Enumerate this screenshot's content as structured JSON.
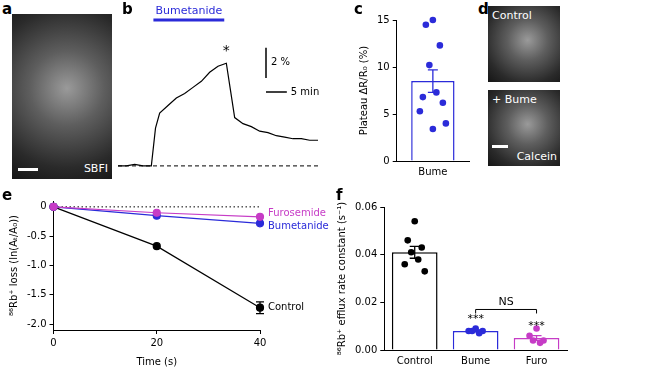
{
  "chart_data": [
    {
      "panel": "b",
      "type": "line",
      "x": [
        0,
        2,
        4,
        6,
        8,
        9,
        10,
        12,
        14,
        16,
        18,
        20,
        22,
        24,
        26,
        27,
        28,
        30,
        32,
        34,
        36,
        38,
        40,
        42,
        44,
        46,
        48
      ],
      "values": [
        0,
        0,
        0.1,
        0,
        0,
        2.5,
        3.5,
        4.0,
        4.5,
        4.8,
        5.2,
        5.6,
        6.2,
        6.6,
        6.8,
        5.0,
        3.2,
        2.8,
        2.6,
        2.3,
        2.2,
        2.0,
        1.9,
        1.8,
        1.8,
        1.7,
        1.7
      ],
      "color": "#000000",
      "xlim": [
        0,
        48
      ],
      "ylim": [
        -1,
        9
      ],
      "tick_labels": false,
      "grid": false,
      "treatment": {
        "label": "Bumetanide",
        "start": 8.5,
        "end": 25.5,
        "color": "#2b2bd9"
      },
      "annotations": [
        {
          "text": "*",
          "x": 26,
          "y": 7.6
        }
      ],
      "reference_lines": [
        {
          "y": 0,
          "line_style": "dashed"
        }
      ],
      "scale_bars": [
        {
          "axis": "y",
          "value": 2,
          "label": "2 %"
        },
        {
          "axis": "x",
          "value": 5,
          "label": "5 min"
        }
      ]
    },
    {
      "panel": "c",
      "type": "bar",
      "categories": [
        "Bume"
      ],
      "values": [
        8.5
      ],
      "errors": [
        1.2
      ],
      "points": [
        [
          15,
          14.5,
          12.3,
          10.2,
          7.3,
          6.8,
          6.2,
          5.3,
          4.0,
          3.4
        ]
      ],
      "color": "#2b2bd9",
      "ylim": [
        0,
        15
      ],
      "yticks": [
        0,
        5,
        10,
        15
      ],
      "y_label": "Plateau ΔR/R₀ (%)",
      "grid": false
    },
    {
      "panel": "e",
      "type": "line",
      "x": [
        0,
        20,
        40
      ],
      "series": [
        {
          "name": "Furosemide",
          "color": "#c63cc6",
          "values": [
            0,
            -0.1,
            -0.17
          ]
        },
        {
          "name": "Bumetanide",
          "color": "#2b2bd9",
          "values": [
            0,
            -0.15,
            -0.28
          ]
        },
        {
          "name": "Control",
          "color": "#000000",
          "values": [
            0,
            -0.67,
            -1.72
          ],
          "errors": [
            null,
            null,
            0.1
          ]
        }
      ],
      "xlim": [
        0,
        40
      ],
      "xticks": [
        0,
        20,
        40
      ],
      "ylim": [
        -2.1,
        0.1
      ],
      "yticks": [
        {
          "value": -2,
          "label": "-2.0"
        },
        -1.5,
        {
          "value": -1,
          "label": "-1.0"
        },
        -0.5,
        0
      ],
      "x_label": "Time (s)",
      "y_label": "⁸⁶Rb⁺ loss (ln(Aₜ/A₀))",
      "marker": "circle",
      "grid": false,
      "reference_lines": [
        {
          "y": 0,
          "line_style": "dotted"
        }
      ]
    },
    {
      "panel": "f",
      "type": "bar",
      "categories": [
        "Control",
        "Bume",
        "Furo"
      ],
      "values": [
        0.041,
        0.008,
        0.005
      ],
      "errors": [
        0.0025,
        0.0004,
        0.001
      ],
      "points": [
        [
          0.054,
          0.046,
          0.043,
          0.041,
          0.038,
          0.036,
          0.033
        ],
        [
          0.009,
          0.008,
          0.008,
          0.008,
          0.007
        ],
        [
          0.009,
          0.006,
          0.004,
          0.004,
          0.003
        ]
      ],
      "colors": [
        "#000000",
        "#2b2bd9",
        "#c63cc6"
      ],
      "ylim": [
        0,
        0.06
      ],
      "yticks": [
        {
          "value": 0,
          "label": "0.00"
        },
        {
          "value": 0.02,
          "label": "0.02"
        },
        {
          "value": 0.04,
          "label": "0.04"
        },
        {
          "value": 0.06,
          "label": "0.06"
        }
      ],
      "y_label": "⁸⁶Rb⁺ efflux rate constant (s⁻¹)",
      "grid": false,
      "annotations": [
        {
          "text": "***",
          "category": "Bume",
          "y": 0.0105
        },
        {
          "text": "***",
          "category": "Furo",
          "y": 0.0075
        },
        {
          "text": "NS",
          "between": [
            "Bume",
            "Furo"
          ],
          "y": 0.017
        }
      ]
    }
  ],
  "images": [
    {
      "panel": "a",
      "label": "SBFI"
    },
    {
      "panel": "d",
      "labels": [
        "Control",
        "+ Bume"
      ],
      "stain": "Calcein"
    }
  ]
}
